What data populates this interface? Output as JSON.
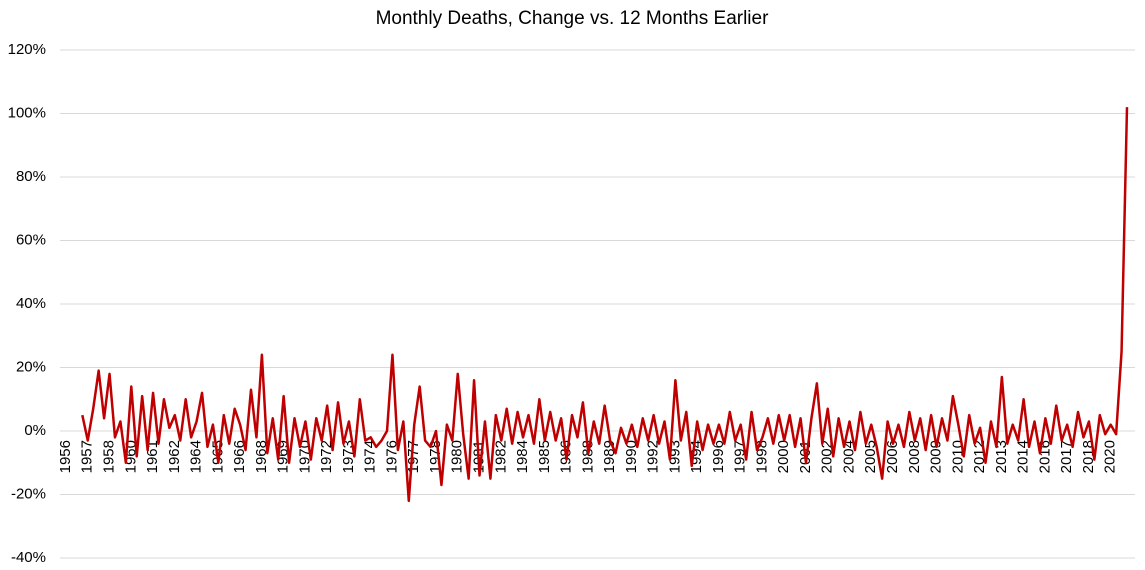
{
  "chart_data": {
    "type": "line",
    "title": "Monthly Deaths, Change vs. 12 Months Earlier",
    "color": "#c00000",
    "grid": true,
    "ylim": [
      -40,
      120
    ],
    "yticks": [
      {
        "value": -40,
        "label": "-40%"
      },
      {
        "value": -20,
        "label": "-20%"
      },
      {
        "value": 0,
        "label": "0%"
      },
      {
        "value": 20,
        "label": "20%"
      },
      {
        "value": 40,
        "label": "40%"
      },
      {
        "value": 60,
        "label": "60%"
      },
      {
        "value": 80,
        "label": "80%"
      },
      {
        "value": 100,
        "label": "100%"
      },
      {
        "value": 120,
        "label": "120%"
      }
    ],
    "categories": [
      "1956",
      null,
      null,
      null,
      "1957",
      null,
      null,
      null,
      "1958",
      null,
      null,
      null,
      "1960",
      null,
      null,
      null,
      "1961",
      null,
      null,
      null,
      "1962",
      null,
      null,
      null,
      "1964",
      null,
      null,
      null,
      "1965",
      null,
      null,
      null,
      "1966",
      null,
      null,
      null,
      "1968",
      null,
      null,
      null,
      "1969",
      null,
      null,
      null,
      "1970",
      null,
      null,
      null,
      "1972",
      null,
      null,
      null,
      "1973",
      null,
      null,
      null,
      "1974",
      null,
      null,
      null,
      "1976",
      null,
      null,
      null,
      "1977",
      null,
      null,
      null,
      "1978",
      null,
      null,
      null,
      "1980",
      null,
      null,
      null,
      "1981",
      null,
      null,
      null,
      "1982",
      null,
      null,
      null,
      "1984",
      null,
      null,
      null,
      "1985",
      null,
      null,
      null,
      "1986",
      null,
      null,
      null,
      "1988",
      null,
      null,
      null,
      "1989",
      null,
      null,
      null,
      "1990",
      null,
      null,
      null,
      "1992",
      null,
      null,
      null,
      "1993",
      null,
      null,
      null,
      "1994",
      null,
      null,
      null,
      "1996",
      null,
      null,
      null,
      "1997",
      null,
      null,
      null,
      "1998",
      null,
      null,
      null,
      "2000",
      null,
      null,
      null,
      "2001",
      null,
      null,
      null,
      "2002",
      null,
      null,
      null,
      "2004",
      null,
      null,
      null,
      "2005",
      null,
      null,
      null,
      "2006",
      null,
      null,
      null,
      "2008",
      null,
      null,
      null,
      "2009",
      null,
      null,
      null,
      "2010",
      null,
      null,
      null,
      "2012",
      null,
      null,
      null,
      "2013",
      null,
      null,
      null,
      "2014",
      null,
      null,
      null,
      "2016",
      null,
      null,
      null,
      "2017",
      null,
      null,
      null,
      "2018",
      null,
      null,
      null,
      "2020",
      null,
      null,
      null
    ],
    "values": [
      null,
      null,
      null,
      5,
      -3,
      7,
      19,
      4,
      18,
      -2,
      3,
      -10,
      14,
      -8,
      11,
      -6,
      12,
      -4,
      10,
      1,
      5,
      -3,
      10,
      -2,
      3,
      12,
      -5,
      2,
      -10,
      5,
      -4,
      7,
      2,
      -6,
      13,
      -2,
      24,
      -7,
      4,
      -9,
      11,
      -10,
      4,
      -5,
      3,
      -9,
      4,
      -3,
      8,
      -6,
      9,
      -4,
      3,
      -8,
      10,
      -3,
      -2,
      -5,
      -3,
      0,
      24,
      -6,
      3,
      -22,
      2,
      14,
      -3,
      -5,
      0,
      -17,
      2,
      -3,
      18,
      -1,
      -15,
      16,
      -14,
      3,
      -15,
      5,
      -3,
      7,
      -4,
      6,
      -2,
      5,
      -4,
      10,
      -3,
      6,
      -3,
      4,
      -9,
      5,
      -2,
      9,
      -7,
      3,
      -4,
      8,
      -3,
      -7,
      1,
      -4,
      2,
      -5,
      4,
      -3,
      5,
      -4,
      3,
      -9,
      16,
      -3,
      6,
      -11,
      3,
      -6,
      2,
      -4,
      2,
      -4,
      6,
      -3,
      2,
      -9,
      6,
      -6,
      -2,
      4,
      -4,
      5,
      -3,
      5,
      -5,
      4,
      -10,
      4,
      15,
      -4,
      7,
      -8,
      4,
      -5,
      3,
      -6,
      6,
      -4,
      2,
      -5,
      -15,
      3,
      -4,
      2,
      -5,
      6,
      -3,
      4,
      -6,
      5,
      -5,
      4,
      -3,
      11,
      2,
      -8,
      5,
      -4,
      1,
      -10,
      3,
      -5,
      17,
      -4,
      2,
      -3,
      10,
      -5,
      3,
      -7,
      4,
      -4,
      8,
      -3,
      2,
      -5,
      6,
      -2,
      3,
      -9,
      5,
      -1,
      2,
      -1,
      25,
      102
    ]
  }
}
